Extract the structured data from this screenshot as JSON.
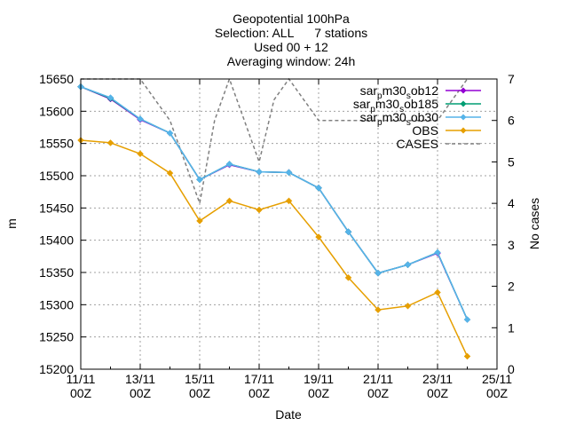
{
  "chart_data": {
    "type": "line",
    "title_lines": [
      "Geopotential 100hPa",
      "Selection: ALL      7 stations",
      "Used 00 + 12",
      "Averaging window: 24h"
    ],
    "xlabel": "Date",
    "ylabel": "m",
    "y2label": "No cases",
    "x_ticks": [
      {
        "day": 11,
        "line1": "11/11",
        "line2": "00Z"
      },
      {
        "day": 13,
        "line1": "13/11",
        "line2": "00Z"
      },
      {
        "day": 15,
        "line1": "15/11",
        "line2": "00Z"
      },
      {
        "day": 17,
        "line1": "17/11",
        "line2": "00Z"
      },
      {
        "day": 19,
        "line1": "19/11",
        "line2": "00Z"
      },
      {
        "day": 21,
        "line1": "21/11",
        "line2": "00Z"
      },
      {
        "day": 23,
        "line1": "23/11",
        "line2": "00Z"
      },
      {
        "day": 25,
        "line1": "25/11",
        "line2": "00Z"
      }
    ],
    "xlim": [
      11,
      25
    ],
    "ylim": [
      15200,
      15650
    ],
    "y_ticks": [
      15200,
      15250,
      15300,
      15350,
      15400,
      15450,
      15500,
      15550,
      15600,
      15650
    ],
    "y2lim": [
      0,
      7
    ],
    "y2_ticks": [
      0,
      1,
      2,
      3,
      4,
      5,
      6,
      7
    ],
    "legend_position": "top-right",
    "grid": true,
    "series": [
      {
        "name": "sar_pm30_sob12",
        "legend_parts": [
          "sar",
          "p",
          "m30",
          "s",
          "ob12"
        ],
        "color": "#9400d3",
        "axis": "y1",
        "x": [
          11,
          12,
          13,
          14,
          15,
          16,
          17,
          18,
          19,
          20,
          21,
          22,
          23,
          24
        ],
        "y": [
          15638,
          15619,
          15587,
          15566,
          15494,
          15517,
          15506,
          15505,
          15481,
          15413,
          15349,
          15362,
          15380,
          15277
        ]
      },
      {
        "name": "sar_pm30_sob185",
        "legend_parts": [
          "sar",
          "p",
          "m30",
          "s",
          "ob185"
        ],
        "color": "#009e73",
        "axis": "y1",
        "x": [
          11,
          12,
          13,
          14,
          15,
          16,
          17,
          18,
          19,
          20,
          21,
          22,
          23,
          24
        ],
        "y": [
          15638,
          15620,
          15588,
          15566,
          15494,
          15518,
          15506,
          15505,
          15481,
          15413,
          15349,
          15362,
          15381,
          15277
        ]
      },
      {
        "name": "sar_pm30_sob30",
        "legend_parts": [
          "sar",
          "p",
          "m30",
          "s",
          "ob30"
        ],
        "color": "#56b4e9",
        "axis": "y1",
        "x": [
          11,
          12,
          13,
          14,
          15,
          16,
          17,
          18,
          19,
          20,
          21,
          22,
          23,
          24
        ],
        "y": [
          15638,
          15621,
          15588,
          15566,
          15494,
          15518,
          15506,
          15505,
          15481,
          15413,
          15349,
          15362,
          15381,
          15277
        ]
      },
      {
        "name": "OBS",
        "legend_parts": [
          "OBS"
        ],
        "color": "#e69f00",
        "axis": "y1",
        "x": [
          11,
          12,
          13,
          14,
          15,
          16,
          17,
          18,
          19,
          20,
          21,
          22,
          23,
          24
        ],
        "y": [
          15555,
          15551,
          15534,
          15504,
          15430,
          15461,
          15447,
          15461,
          15405,
          15342,
          15292,
          15298,
          15319,
          15220
        ]
      },
      {
        "name": "CASES",
        "legend_parts": [
          "CASES"
        ],
        "color": "#808080",
        "axis": "y2",
        "dashed": true,
        "x": [
          11,
          12,
          13,
          13.5,
          14,
          14.5,
          15,
          15.5,
          16,
          16.5,
          17,
          17.5,
          18,
          18.5,
          19,
          19.5,
          20,
          20.5,
          21,
          21.5,
          22,
          22.5,
          23,
          23.5,
          24
        ],
        "y": [
          7,
          7,
          7,
          6.5,
          6,
          5,
          4,
          6,
          7,
          6,
          5,
          6.5,
          7,
          6.5,
          6,
          6,
          6,
          6,
          6,
          6,
          6,
          6,
          6,
          6.5,
          7
        ]
      }
    ]
  }
}
